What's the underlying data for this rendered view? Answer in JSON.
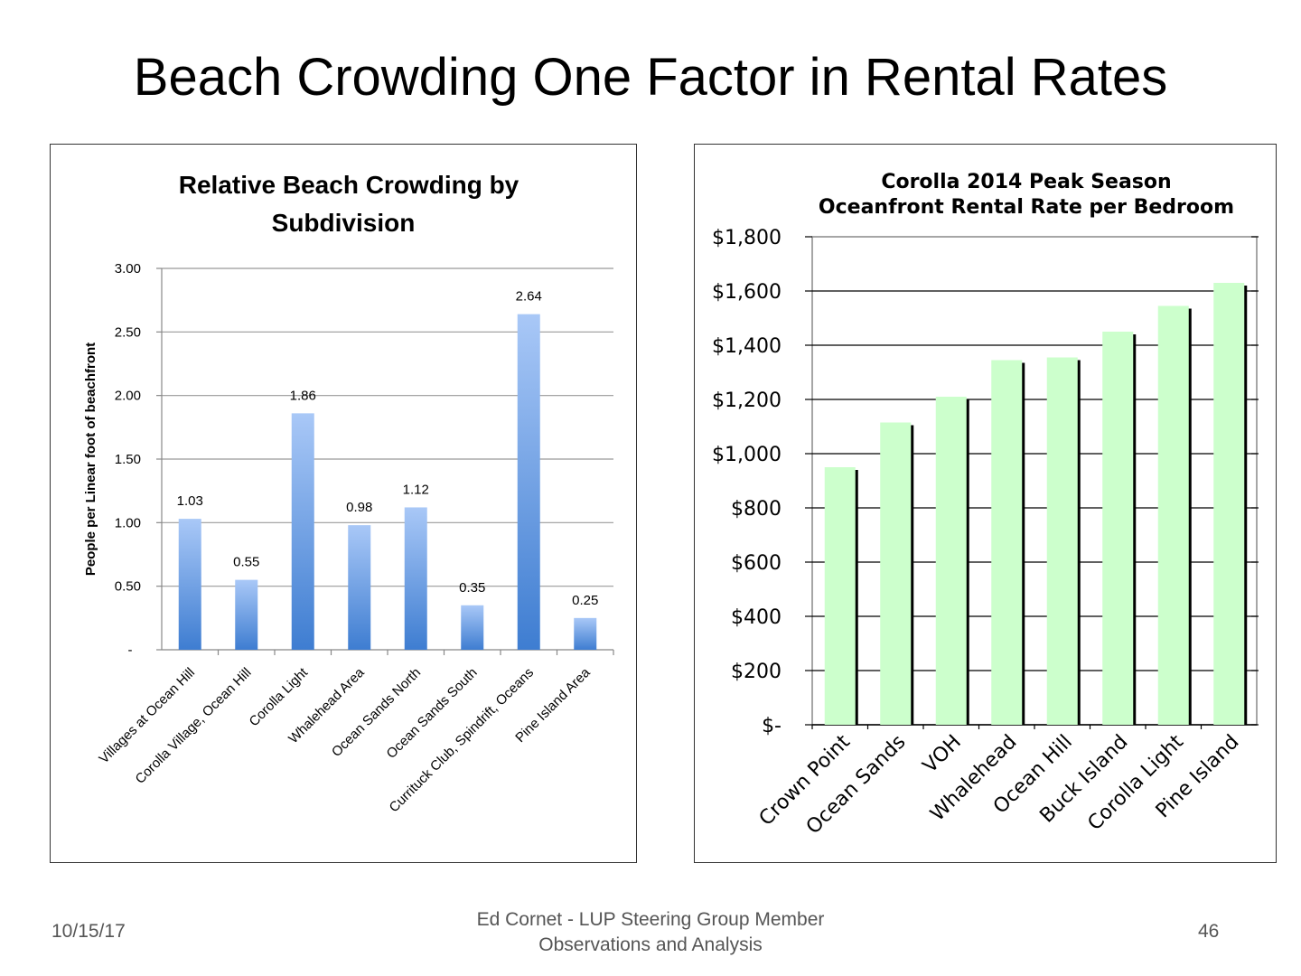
{
  "slide": {
    "title": "Beach Crowding One Factor in Rental Rates",
    "footer_date": "10/15/17",
    "footer_line1": "Ed Cornet - LUP Steering Group Member",
    "footer_line2": "Observations and Analysis",
    "page_number": "46"
  },
  "chart_data": [
    {
      "type": "bar",
      "title_line1": "Relative Beach Crowding by",
      "title_line2": "Subdivision",
      "ylabel": "People per Linear foot of beachfront",
      "xlabel": "",
      "categories": [
        "Villages at Ocean Hill",
        "Corolla Village, Ocean Hill",
        "Corolla Light",
        "Whalehead Area",
        "Ocean Sands North",
        "Ocean Sands South",
        "Currituck Club, Spindrift, Oceans",
        "Pine Island Area"
      ],
      "values": [
        1.03,
        0.55,
        1.86,
        0.98,
        1.12,
        0.35,
        2.64,
        0.25
      ],
      "data_labels": [
        "1.03",
        "0.55",
        "1.86",
        "0.98",
        "1.12",
        "0.35",
        "2.64",
        "0.25"
      ],
      "yticks": [
        "-",
        "0.50",
        "1.00",
        "1.50",
        "2.00",
        "2.50",
        "3.00"
      ],
      "ylim": [
        0,
        3
      ],
      "grid": true,
      "legend": "none",
      "bar_color_top": "#a9c8f7",
      "bar_color_bottom": "#3e7dd1"
    },
    {
      "type": "bar",
      "title_line1": "Corolla 2014 Peak Season",
      "title_line2": "Oceanfront Rental Rate per Bedroom",
      "xlabel": "",
      "ylabel": "",
      "categories": [
        "Crown Point",
        "Ocean Sands",
        "VOH",
        "Whalehead",
        "Ocean Hill",
        "Buck Island",
        "Corolla Light",
        "Pine Island"
      ],
      "values": [
        950,
        1115,
        1210,
        1345,
        1355,
        1450,
        1545,
        1630
      ],
      "yticks": [
        "$-",
        "$200",
        "$400",
        "$600",
        "$800",
        "$1,000",
        "$1,200",
        "$1,400",
        "$1,600",
        "$1,800"
      ],
      "ylim": [
        0,
        1800
      ],
      "grid": true,
      "legend": "none",
      "bar_color": "#ccffcc",
      "shadow_color": "#000000"
    }
  ]
}
